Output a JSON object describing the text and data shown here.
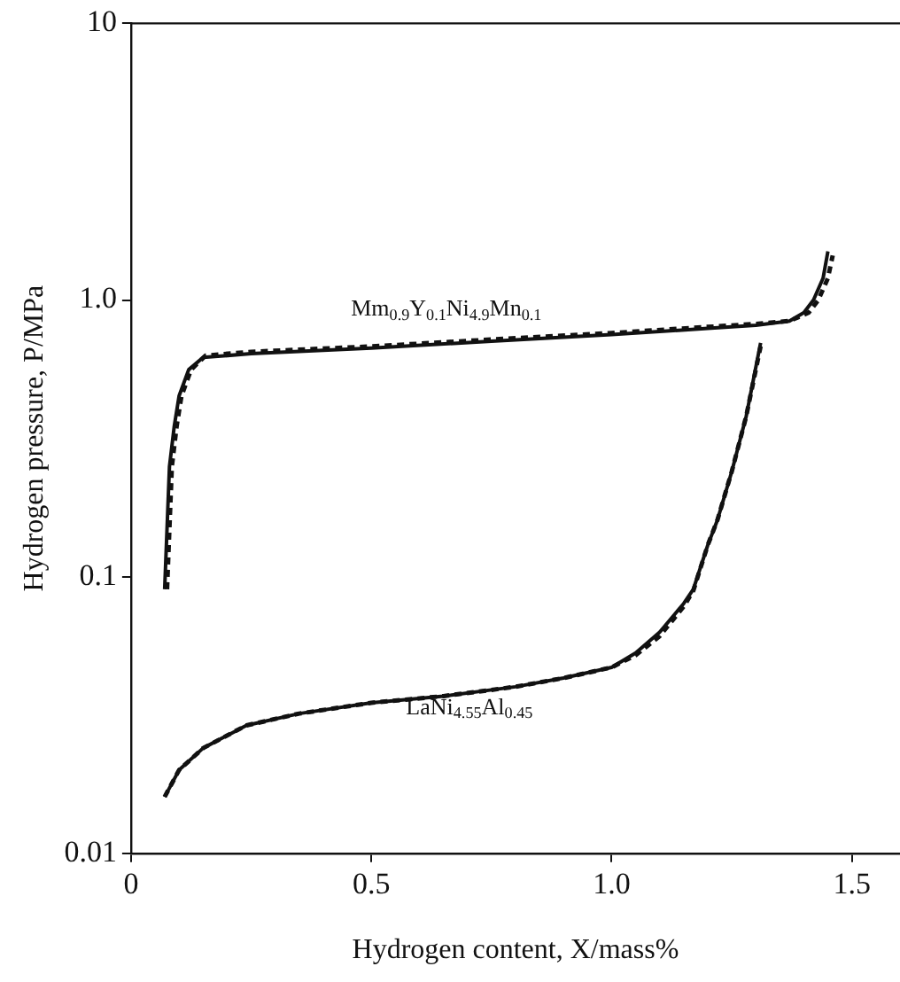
{
  "chart_data": {
    "type": "line",
    "xlabel": "Hydrogen content, X/mass%",
    "ylabel": "Hydrogen pressure, P/MPa",
    "log": "y",
    "grid": false,
    "legend": false,
    "marker": "none",
    "xlim": [
      0,
      1.6
    ],
    "xticks": [
      0,
      0.5,
      {
        "value": 1.0,
        "label": "1.0"
      },
      1.5
    ],
    "ylim": [
      0.01,
      10
    ],
    "yticks": [
      0.01,
      0.1,
      {
        "value": 1,
        "label": "1.0"
      },
      10
    ],
    "series": [
      {
        "color": "#111111",
        "line_style": "solid",
        "x": [
          0.07,
          0.075,
          0.08,
          0.09,
          0.1,
          0.12,
          0.15,
          0.25,
          0.5,
          0.75,
          1.0,
          1.2,
          1.3,
          1.37,
          1.4,
          1.42,
          1.44,
          1.45
        ],
        "values": [
          0.09,
          0.15,
          0.25,
          0.35,
          0.45,
          0.56,
          0.62,
          0.64,
          0.67,
          0.71,
          0.75,
          0.79,
          0.81,
          0.84,
          0.9,
          1.0,
          1.2,
          1.5
        ]
      },
      {
        "color": "#111111",
        "line_style": "dashed",
        "x": [
          0.075,
          0.08,
          0.085,
          0.095,
          0.105,
          0.125,
          0.155,
          0.25,
          0.5,
          0.75,
          1.0,
          1.2,
          1.3,
          1.37,
          1.41,
          1.43,
          1.45,
          1.46
        ],
        "values": [
          0.09,
          0.15,
          0.25,
          0.35,
          0.45,
          0.56,
          0.63,
          0.65,
          0.68,
          0.72,
          0.76,
          0.8,
          0.82,
          0.84,
          0.9,
          1.0,
          1.2,
          1.45
        ]
      },
      {
        "color": "#111111",
        "line_style": "solid",
        "x": [
          0.07,
          0.1,
          0.15,
          0.24,
          0.35,
          0.5,
          0.65,
          0.8,
          0.9,
          1.0,
          1.05,
          1.1,
          1.15,
          1.17,
          1.2,
          1.22,
          1.25,
          1.28,
          1.31
        ],
        "values": [
          0.016,
          0.02,
          0.024,
          0.029,
          0.032,
          0.035,
          0.037,
          0.04,
          0.043,
          0.047,
          0.053,
          0.063,
          0.08,
          0.09,
          0.13,
          0.16,
          0.24,
          0.38,
          0.7
        ]
      },
      {
        "color": "#111111",
        "line_style": "dashed",
        "x": [
          0.07,
          0.1,
          0.15,
          0.24,
          0.35,
          0.5,
          0.65,
          0.8,
          0.9,
          1.0,
          1.05,
          1.1,
          1.15,
          1.17,
          1.2,
          1.22,
          1.25,
          1.28,
          1.31
        ],
        "values": [
          0.016,
          0.02,
          0.024,
          0.029,
          0.032,
          0.035,
          0.037,
          0.04,
          0.043,
          0.047,
          0.052,
          0.061,
          0.078,
          0.089,
          0.13,
          0.16,
          0.24,
          0.38,
          0.68
        ]
      }
    ],
    "annotations": [
      "Mm$_{0.9}$Y$_{0.1}$Ni$_{4.9}$Mn$_{0.1}$",
      "LaNi$_{4.55}$Al$_{0.45}$"
    ]
  }
}
